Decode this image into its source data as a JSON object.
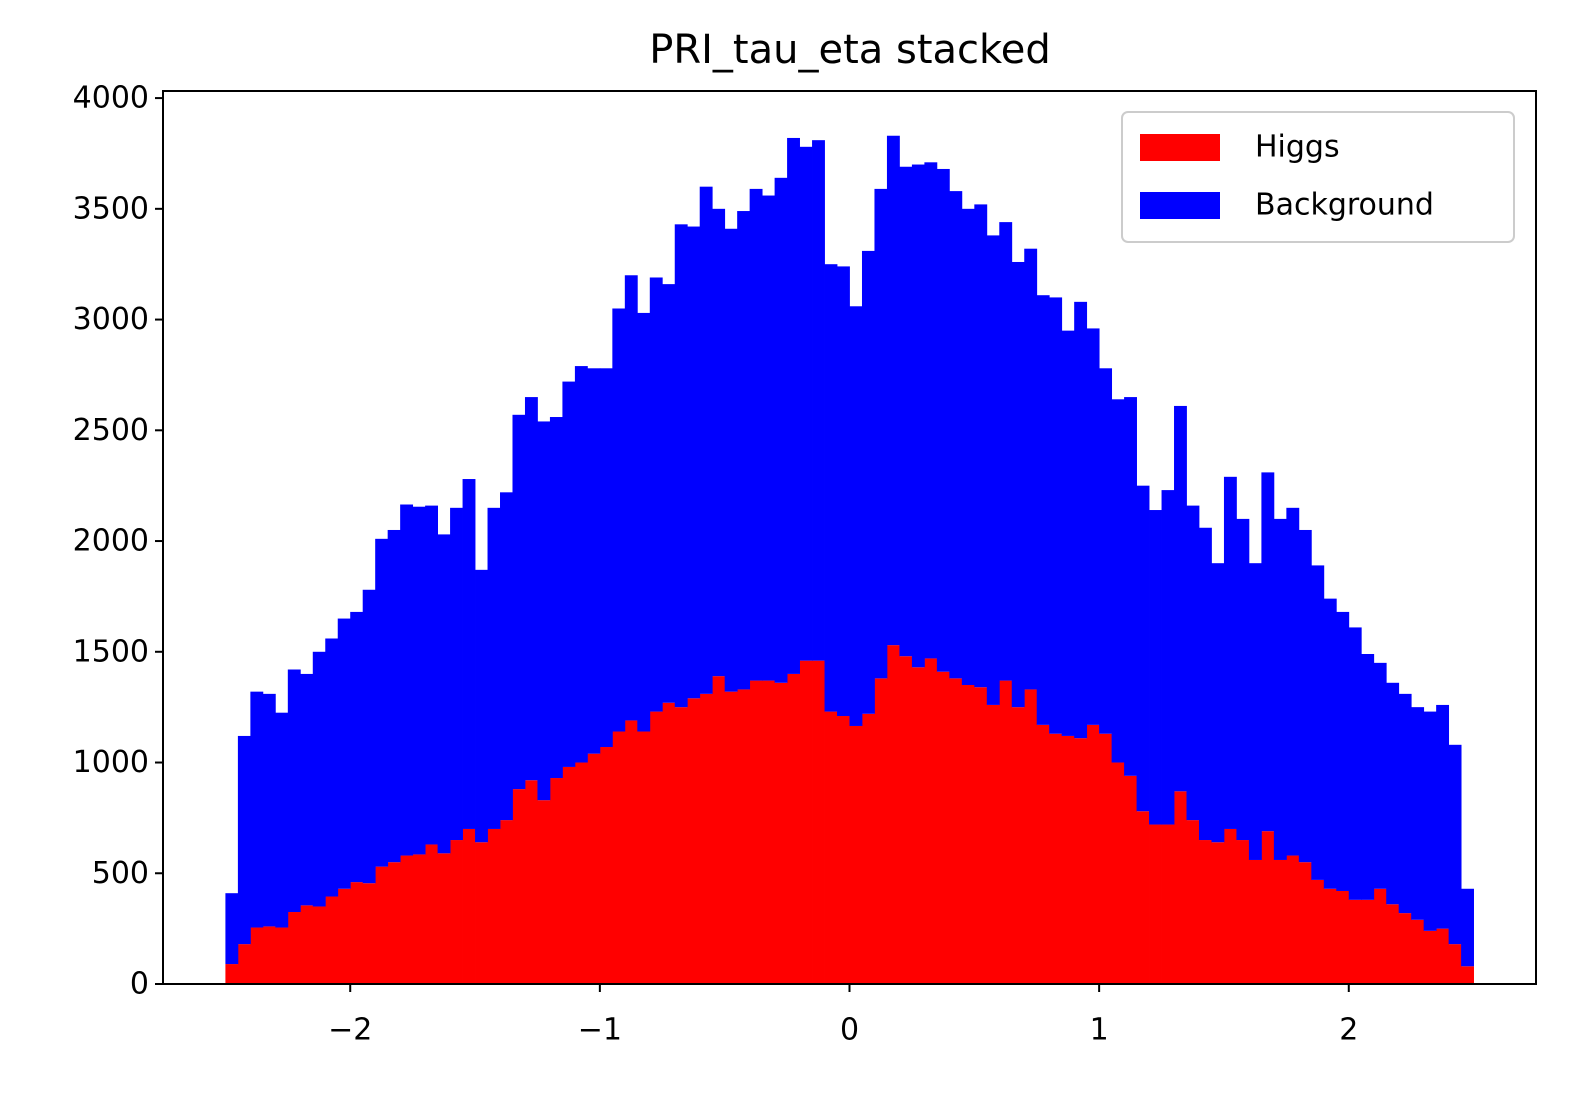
{
  "chart_data": {
    "type": "stacked_histogram",
    "title": "PRI_tau_eta stacked",
    "bins": [
      -2.5,
      -2.45,
      -2.4,
      -2.35,
      -2.3,
      -2.25,
      -2.2,
      -2.15,
      -2.1,
      -2.05,
      -2.0,
      -1.95,
      -1.9,
      -1.85,
      -1.8,
      -1.75,
      -1.7,
      -1.65,
      -1.6,
      -1.55,
      -1.5,
      -1.45,
      -1.4,
      -1.35,
      -1.3,
      -1.25,
      -1.2,
      -1.15,
      -1.1,
      -1.05,
      -1.0,
      -0.95,
      -0.9,
      -0.85,
      -0.8,
      -0.75,
      -0.7,
      -0.65,
      -0.6,
      -0.55,
      -0.5,
      -0.45,
      -0.4,
      -0.35,
      -0.3,
      -0.25,
      -0.2,
      -0.15,
      -0.1,
      -0.05,
      0,
      0.05,
      0.1,
      0.15,
      0.2,
      0.25,
      0.3,
      0.35,
      0.4,
      0.45,
      0.5,
      0.55,
      0.6,
      0.65,
      0.7,
      0.75,
      0.8,
      0.85,
      0.9,
      0.95,
      1.0,
      1.05,
      1.1,
      1.15,
      1.2,
      1.25,
      1.3,
      1.35,
      1.4,
      1.45,
      1.5,
      1.55,
      1.6,
      1.65,
      1.7,
      1.75,
      1.8,
      1.85,
      1.9,
      1.95,
      2.0,
      2.05,
      2.1,
      2.15,
      2.2,
      2.25,
      2.3,
      2.35,
      2.4,
      2.45,
      2.5
    ],
    "series": [
      {
        "name": "Higgs",
        "color": "#ff0000",
        "values": [
          90,
          180,
          255,
          260,
          255,
          325,
          355,
          350,
          395,
          430,
          460,
          455,
          530,
          550,
          580,
          585,
          630,
          590,
          650,
          700,
          640,
          700,
          740,
          880,
          920,
          830,
          930,
          980,
          1000,
          1040,
          1070,
          1140,
          1190,
          1140,
          1230,
          1270,
          1250,
          1290,
          1310,
          1390,
          1320,
          1330,
          1370,
          1370,
          1360,
          1400,
          1460,
          1460,
          1230,
          1210,
          1165,
          1220,
          1380,
          1530,
          1480,
          1430,
          1470,
          1410,
          1380,
          1350,
          1340,
          1260,
          1370,
          1250,
          1330,
          1170,
          1130,
          1120,
          1110,
          1170,
          1130,
          1000,
          940,
          780,
          720,
          720,
          870,
          740,
          650,
          640,
          700,
          650,
          560,
          690,
          560,
          580,
          550,
          470,
          430,
          420,
          380,
          380,
          430,
          360,
          320,
          290,
          240,
          250,
          180,
          80
        ]
      },
      {
        "name": "Background",
        "color": "#0000ff",
        "values": [
          320,
          940,
          1065,
          1050,
          970,
          1095,
          1045,
          1150,
          1165,
          1220,
          1220,
          1325,
          1480,
          1500,
          1585,
          1570,
          1530,
          1440,
          1500,
          1580,
          1230,
          1450,
          1480,
          1690,
          1730,
          1710,
          1630,
          1740,
          1790,
          1740,
          1710,
          1910,
          2010,
          1890,
          1960,
          1890,
          2180,
          2130,
          2290,
          2110,
          2090,
          2160,
          2220,
          2190,
          2280,
          2420,
          2320,
          2350,
          2020,
          2030,
          1895,
          2090,
          2210,
          2300,
          2210,
          2270,
          2240,
          2270,
          2200,
          2150,
          2180,
          2120,
          2070,
          2010,
          1990,
          1940,
          1970,
          1830,
          1970,
          1790,
          1650,
          1640,
          1710,
          1470,
          1420,
          1510,
          1740,
          1420,
          1410,
          1260,
          1590,
          1450,
          1340,
          1620,
          1540,
          1570,
          1500,
          1420,
          1310,
          1260,
          1230,
          1110,
          1020,
          1000,
          990,
          960,
          990,
          1010,
          900,
          350
        ]
      }
    ],
    "xlim": [
      -2.75,
      2.75
    ],
    "ylim": [
      0,
      4032
    ],
    "xticks": [
      {
        "value": -2,
        "label": "−2"
      },
      {
        "value": -1,
        "label": "−1"
      },
      0,
      1,
      2
    ],
    "yticks": [
      0,
      500,
      1000,
      1500,
      2000,
      2500,
      3000,
      3500,
      4000
    ],
    "legend": "upper right"
  }
}
